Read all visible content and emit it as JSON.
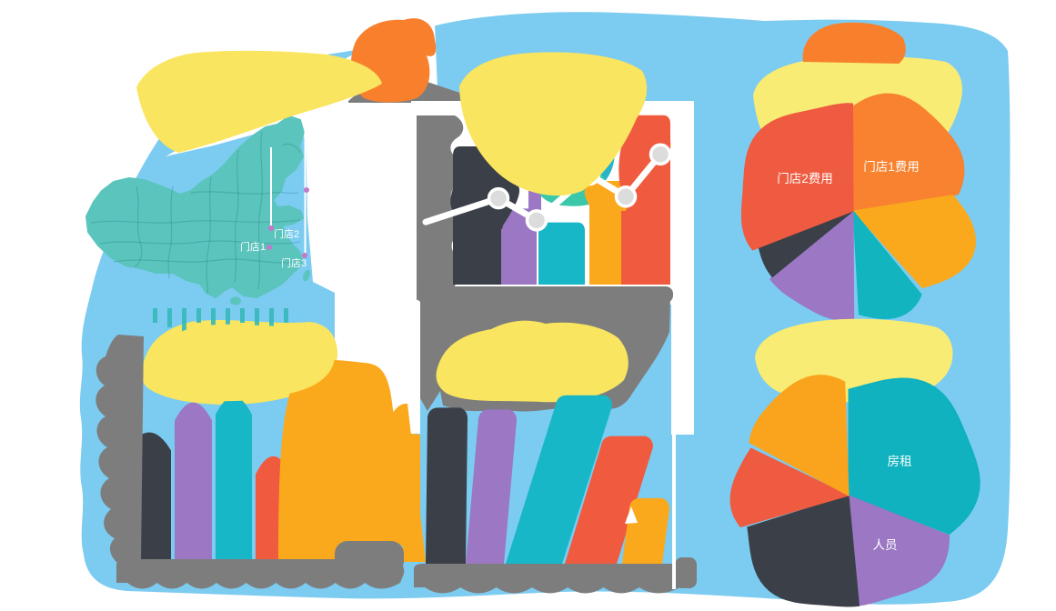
{
  "title": "store-sales-dashboard",
  "palette": {
    "background": "#ffffff",
    "panel_blue": "#7CCBF1",
    "yellow_blob": "#F9E55F",
    "yellow_blob_light": "#F9EC74",
    "orange_blob": "#F8802D",
    "map_teal": "#5AC4BD",
    "map_line": "#3E9C96",
    "gray_shape": "#7D7D7D",
    "dark_slate": "#3B4048",
    "purple": "#9B77C4",
    "teal": "#17B7C7",
    "teal_light": "#3BC8A9",
    "amber": "#FBA91C",
    "red_orange": "#F05B40",
    "marker_dot": "#C678C8",
    "line_marker_fill": "#DCDCDC",
    "white": "#ffffff"
  },
  "chart_data": [
    {
      "type": "map",
      "name": "store-locations-map",
      "region": "china",
      "markers": [
        {
          "label": "门店1"
        },
        {
          "label": "门店2"
        },
        {
          "label": "门店3"
        }
      ]
    },
    {
      "type": "bar",
      "name": "trend-bar-line-combo",
      "note": "bar+line combo, axis labels obscured by gray blobs",
      "bar_values": [
        80,
        44,
        36,
        60,
        98
      ],
      "bar_colors": [
        "#3B4048",
        "#9B77C4",
        "#17B7C7",
        "#FBA91C",
        "#F05B40"
      ],
      "line_values": [
        37,
        51,
        38,
        65,
        52,
        77
      ],
      "ylim": [
        0,
        100
      ],
      "grid": false,
      "legend": "none"
    },
    {
      "type": "pie",
      "name": "expense-pie-top",
      "slices": [
        {
          "label": "门店1费用",
          "pct": 22.5,
          "color": "#F8822F",
          "bulge": 0.22
        },
        {
          "label": "",
          "pct": 16.6,
          "color": "#FBA91C",
          "bulge": 0.18
        },
        {
          "label": "",
          "pct": 10.8,
          "color": "#12B5BF",
          "bulge": 0.1
        },
        {
          "label": "",
          "pct": 14.2,
          "color": "#9B77C4",
          "bulge": 0.06
        },
        {
          "label": "",
          "pct": 5.0,
          "color": "#3B4048",
          "bulge": 0.02
        },
        {
          "label": "门店2费用",
          "pct": 30.9,
          "color": "#EF5B40",
          "bulge": 0.14
        }
      ]
    },
    {
      "type": "bar",
      "name": "bottom-left-bars",
      "note": "x axis labels obscured by gray scalloped blob",
      "values": [
        71,
        86,
        89,
        59,
        100
      ],
      "colors": [
        "#3B4048",
        "#9B77C4",
        "#17B7C7",
        "#F05B40",
        "#FBA91C"
      ],
      "ylim": [
        0,
        100
      ]
    },
    {
      "type": "bar",
      "name": "bottom-middle-slanted-bars",
      "note": "slanted italic bars, axis labels obscured",
      "values": [
        88,
        87,
        95,
        72,
        37
      ],
      "colors": [
        "#3B4048",
        "#9B77C4",
        "#17B7C7",
        "#F05B40",
        "#FBA91C"
      ],
      "ylim": [
        0,
        100
      ]
    },
    {
      "type": "pie",
      "name": "expense-pie-bottom",
      "slices": [
        {
          "label": "房租",
          "pct": 31.0,
          "color": "#0FB2BE",
          "bulge": 0.26
        },
        {
          "label": "人员",
          "pct": 17.5,
          "color": "#9B77C4",
          "bulge": 0.06
        },
        {
          "label": "",
          "pct": 22.0,
          "color": "#3B4048",
          "bulge": 0.1
        },
        {
          "label": "",
          "pct": 12.3,
          "color": "#EF5B40",
          "bulge": 0.08
        },
        {
          "label": "",
          "pct": 17.2,
          "color": "#FAA41D",
          "bulge": 0.16
        }
      ]
    }
  ]
}
